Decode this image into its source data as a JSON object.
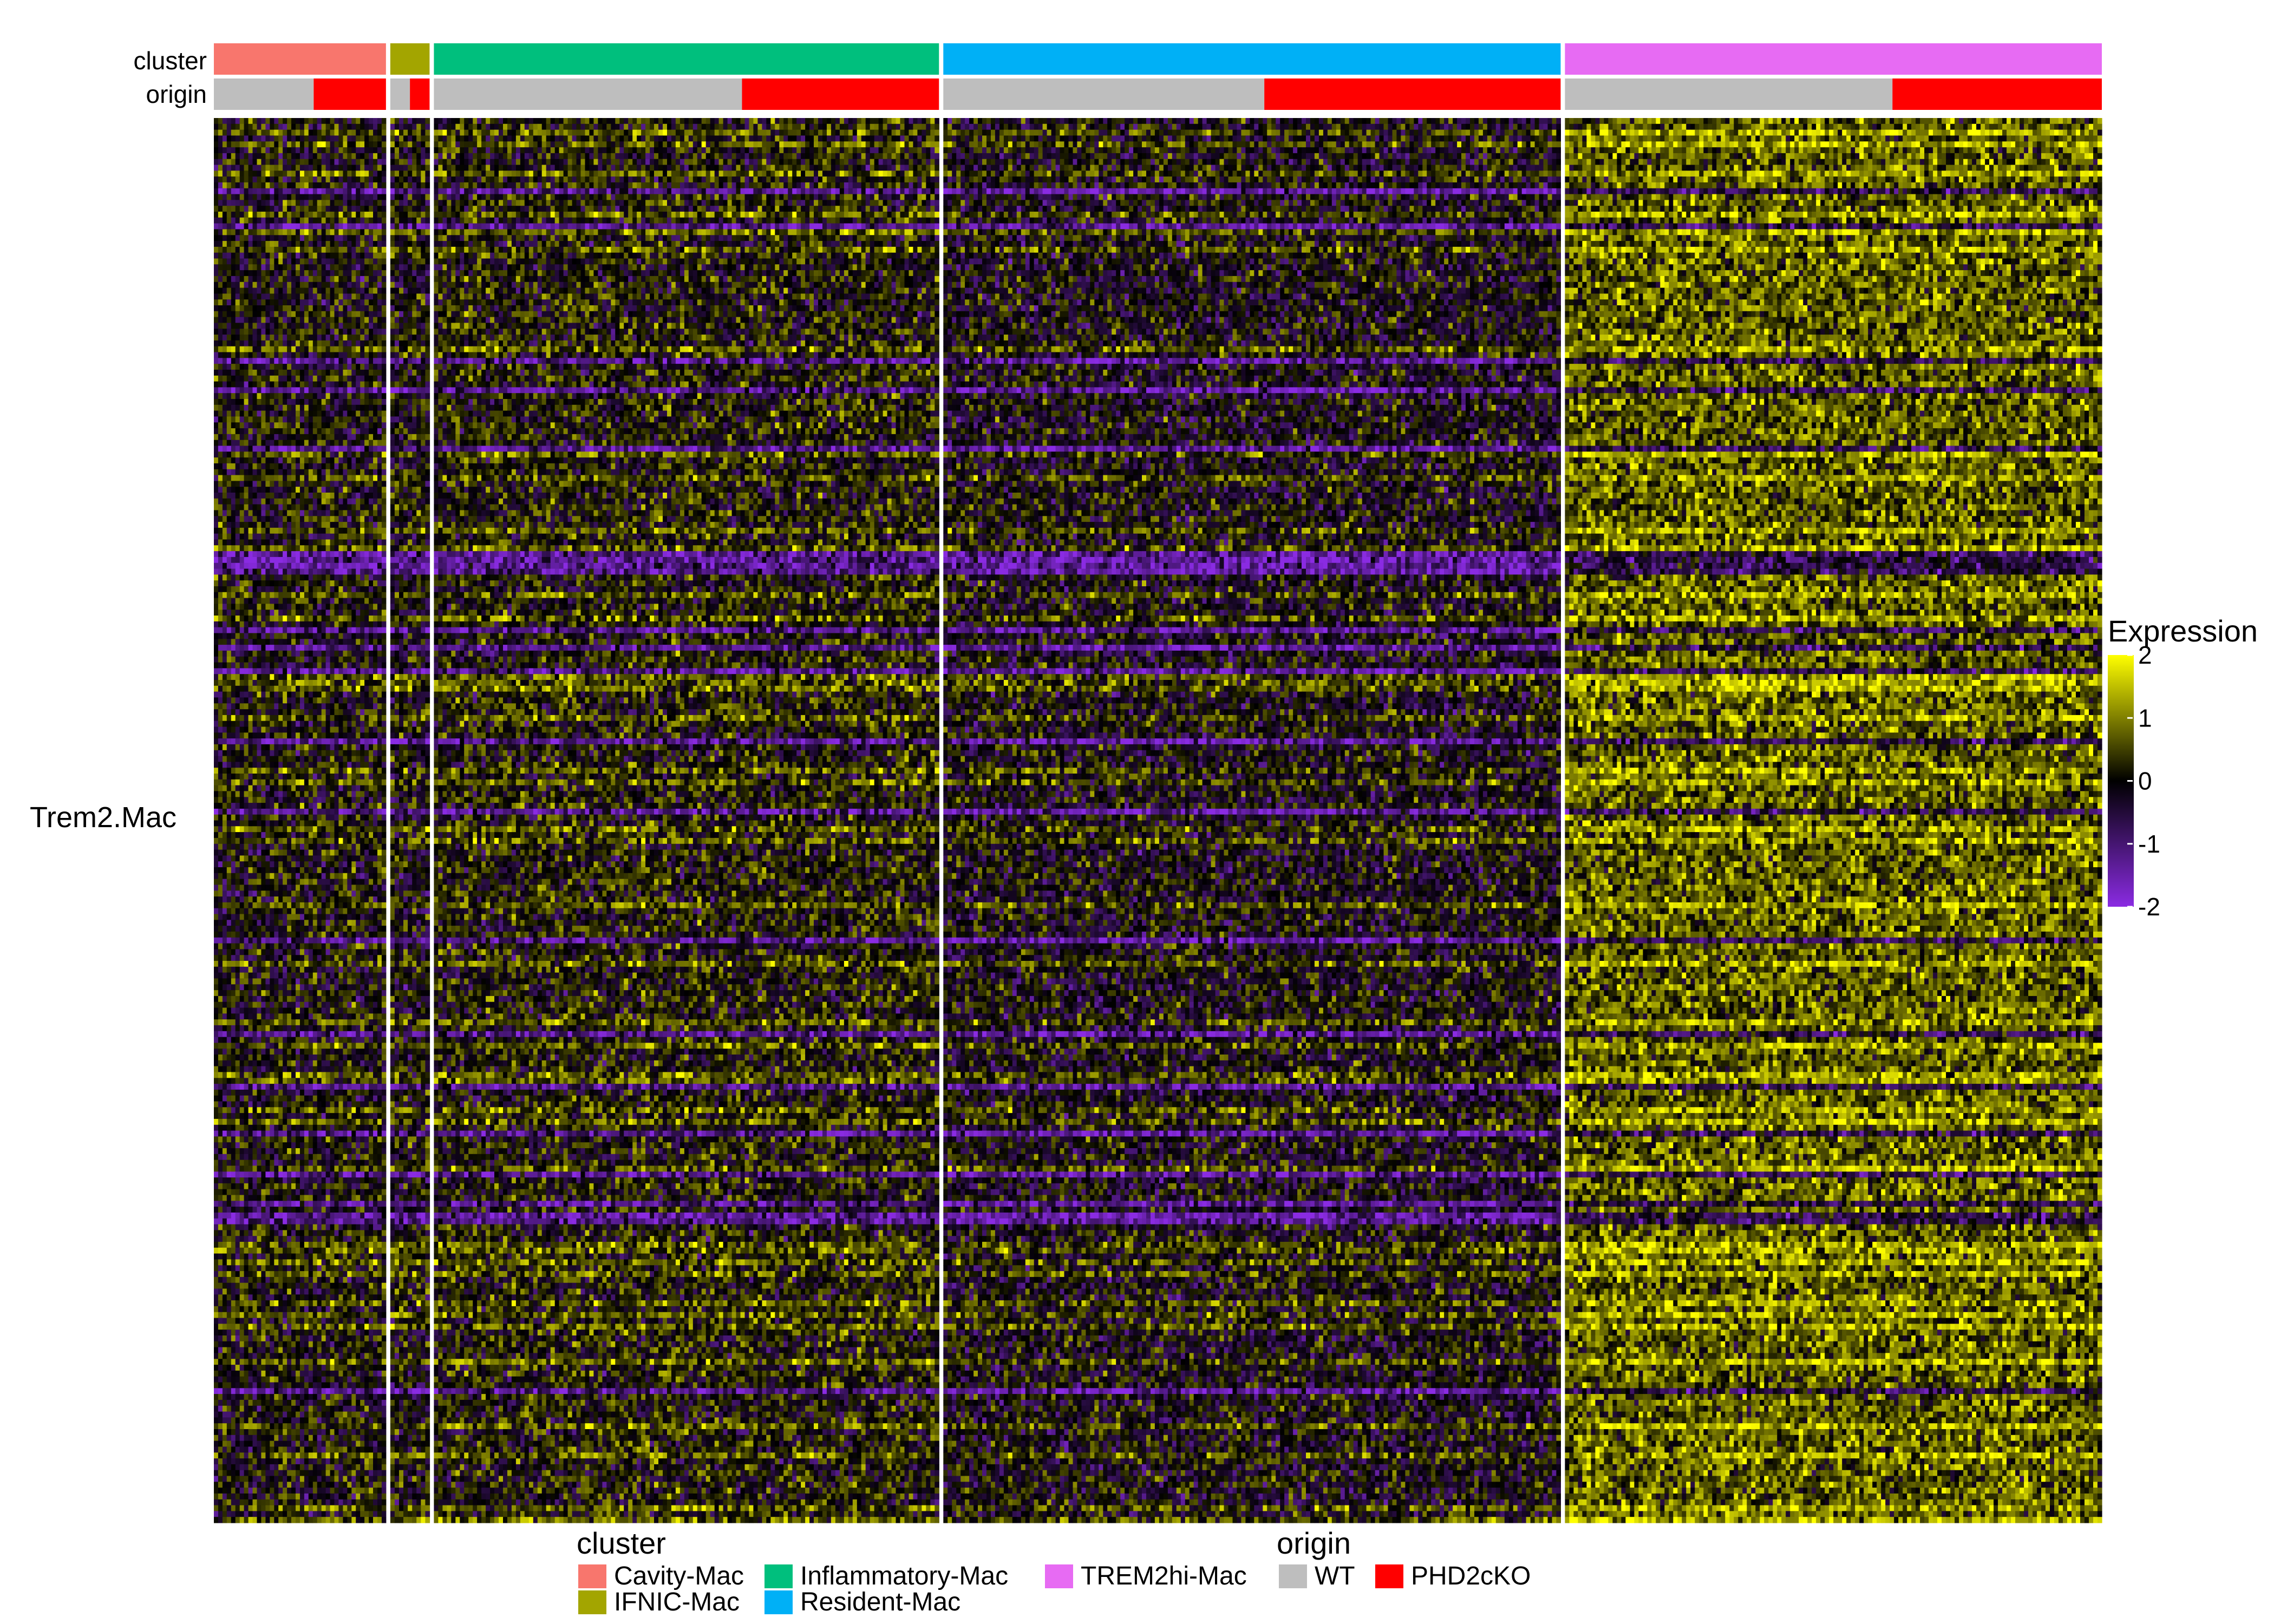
{
  "chart_data": {
    "type": "heatmap",
    "title": "",
    "row_group_label": "Trem2.Mac",
    "annotation_rows": [
      "cluster",
      "origin"
    ],
    "clusters": [
      {
        "name": "Cavity-Mac",
        "color": "#F8766D",
        "cell_fraction": 0.092,
        "wt_fraction": 0.58
      },
      {
        "name": "IFNIC-Mac",
        "color": "#A3A500",
        "cell_fraction": 0.021,
        "wt_fraction": 0.5
      },
      {
        "name": "Inflammatory-Mac",
        "color": "#00BF7D",
        "cell_fraction": 0.27,
        "wt_fraction": 0.61
      },
      {
        "name": "Resident-Mac",
        "color": "#00B0F6",
        "cell_fraction": 0.33,
        "wt_fraction": 0.52
      },
      {
        "name": "TREM2hi-Mac",
        "color": "#E76BF3",
        "cell_fraction": 0.287,
        "wt_fraction": 0.61
      }
    ],
    "origin": [
      {
        "name": "WT",
        "color": "#BEBEBE"
      },
      {
        "name": "PHD2cKO",
        "color": "#FF0000"
      }
    ],
    "color_scale": {
      "title": "Expression",
      "min": -2,
      "max": 2,
      "ticks": [
        "2",
        "1",
        "0",
        "-1",
        "-2"
      ],
      "colors": {
        "low": "#8A2BE2",
        "mid": "#000000",
        "high": "#FFFF00"
      }
    },
    "cluster_mean_expression": {
      "Cavity-Mac": 0.0,
      "IFNIC-Mac": 0.0,
      "Inflammatory-Mac": 0.1,
      "Resident-Mac": -0.1,
      "TREM2hi-Mac": 0.7
    },
    "legend": {
      "position": "bottom",
      "cluster_title": "cluster",
      "origin_title": "origin"
    }
  }
}
